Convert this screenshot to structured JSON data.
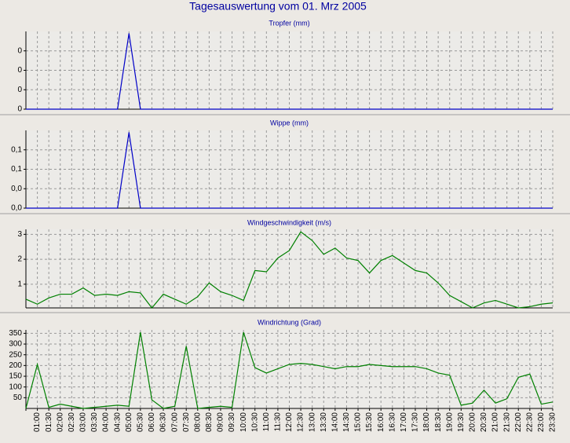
{
  "title": "Tagesauswertung vom 01. Mrz 2005",
  "chart_data": [
    {
      "type": "line",
      "title": "Tropfer (mm)",
      "color": "#0000c8",
      "grid": true,
      "ylim": [
        0,
        0.4
      ],
      "yticks": [
        0,
        {
          "value": 0.1,
          "label": "0"
        },
        {
          "value": 0.2,
          "label": "0"
        },
        {
          "value": 0.3,
          "label": "0"
        }
      ],
      "values": [
        0,
        0,
        0,
        0,
        0,
        0,
        0,
        0,
        0,
        0.39,
        0,
        0,
        0,
        0,
        0,
        0,
        0,
        0,
        0,
        0,
        0,
        0,
        0,
        0,
        0,
        0,
        0,
        0,
        0,
        0,
        0,
        0,
        0,
        0,
        0,
        0,
        0,
        0,
        0,
        0,
        0,
        0,
        0,
        0,
        0,
        0,
        0
      ]
    },
    {
      "type": "line",
      "title": "Wippe (mm)",
      "color": "#0000c8",
      "grid": true,
      "ylim": [
        0,
        0.2
      ],
      "yticks": [
        {
          "value": 0,
          "label": "0,0"
        },
        {
          "value": 0.05,
          "label": "0,0"
        },
        {
          "value": 0.1,
          "label": "0,1"
        },
        {
          "value": 0.15,
          "label": "0,1"
        }
      ],
      "values": [
        0,
        0,
        0,
        0,
        0,
        0,
        0,
        0,
        0,
        0.195,
        0,
        0,
        0,
        0,
        0,
        0,
        0,
        0,
        0,
        0,
        0,
        0,
        0,
        0,
        0,
        0,
        0,
        0,
        0,
        0,
        0,
        0,
        0,
        0,
        0,
        0,
        0,
        0,
        0,
        0,
        0,
        0,
        0,
        0,
        0,
        0,
        0
      ]
    },
    {
      "type": "line",
      "title": "Windgeschwindigkeit (m/s)",
      "color": "#008000",
      "grid": true,
      "ylim": [
        0.05,
        3.2
      ],
      "yticks": [
        1,
        2,
        3
      ],
      "values": [
        0.4,
        0.2,
        0.45,
        0.6,
        0.6,
        0.85,
        0.55,
        0.6,
        0.55,
        0.7,
        0.65,
        0.05,
        0.6,
        0.4,
        0.2,
        0.5,
        1.05,
        0.7,
        0.55,
        0.35,
        1.55,
        1.5,
        2.05,
        2.35,
        3.1,
        2.75,
        2.2,
        2.45,
        2.05,
        1.95,
        1.45,
        1.95,
        2.15,
        1.85,
        1.55,
        1.45,
        1.05,
        0.55,
        0.3,
        0.05,
        0.25,
        0.35,
        0.2,
        0.05,
        0.1,
        0.2,
        0.25
      ]
    },
    {
      "type": "line",
      "title": "Windrichtung (Grad)",
      "color": "#008000",
      "grid": true,
      "ylim": [
        0,
        366
      ],
      "yticks": [
        50,
        100,
        150,
        200,
        250,
        300,
        350
      ],
      "categories": [
        null,
        "01:00",
        "01:30",
        "02:00",
        "02:30",
        "03:00",
        "03:30",
        "04:00",
        "04:30",
        "05:00",
        "05:30",
        "06:00",
        "06:30",
        "07:00",
        "07:30",
        "08:00",
        "08:30",
        "09:00",
        "09:30",
        "10:00",
        "10:30",
        "11:00",
        "11:30",
        "12:00",
        "12:30",
        "13:00",
        "13:30",
        "14:00",
        "14:30",
        "15:00",
        "15:30",
        "16:00",
        "16:30",
        "17:00",
        "17:30",
        "18:00",
        "18:30",
        "19:00",
        "19:30",
        "20:00",
        "20:30",
        "21:00",
        "21:30",
        "22:00",
        "22:30",
        "23:00",
        "23:30"
      ],
      "values": [
        0,
        205,
        5,
        20,
        10,
        0,
        5,
        10,
        15,
        10,
        355,
        40,
        0,
        10,
        290,
        0,
        5,
        10,
        5,
        355,
        190,
        165,
        185,
        205,
        210,
        205,
        195,
        185,
        195,
        195,
        205,
        200,
        195,
        195,
        195,
        185,
        165,
        155,
        15,
        25,
        85,
        25,
        45,
        145,
        160,
        20,
        30
      ]
    }
  ]
}
